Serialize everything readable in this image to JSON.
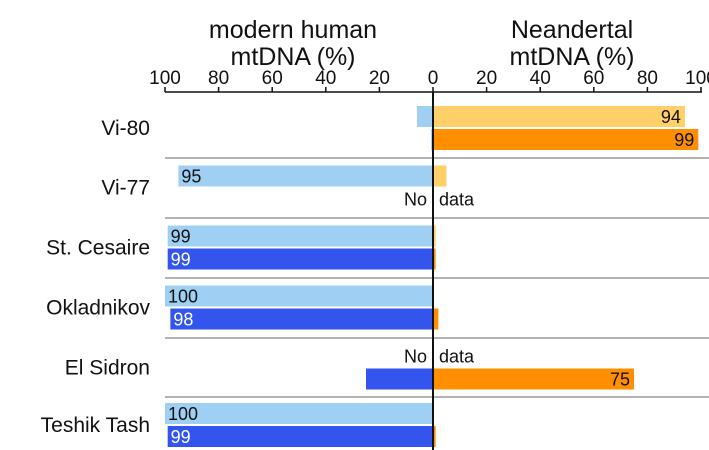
{
  "chart_data": {
    "type": "bar",
    "orientation": "horizontal",
    "headers": {
      "left": [
        "modern human",
        "mtDNA (%)"
      ],
      "right": [
        "Neandertal",
        "mtDNA (%)"
      ]
    },
    "left_ticks": [
      "100",
      "80",
      "60",
      "40",
      "20",
      "0"
    ],
    "right_ticks": [
      "0",
      "20",
      "40",
      "60",
      "80",
      "100"
    ],
    "xlim_left": [
      100,
      0
    ],
    "xlim_right": [
      0,
      100
    ],
    "grid": false,
    "no_data_text": [
      "No",
      "data"
    ],
    "categories": [
      "Vi-80",
      "Vi-77",
      "St. Cesaire",
      "Okladnikov",
      "El Sidron",
      "Teshik Tash"
    ],
    "rows": [
      {
        "category": "Vi-80",
        "top": {
          "modern": 6,
          "neandertal": 94,
          "label": "94",
          "label_side": "right"
        },
        "bottom": {
          "modern": 0.5,
          "neandertal": 99,
          "label": "99",
          "label_side": "right"
        }
      },
      {
        "category": "Vi-77",
        "top": {
          "modern": 95,
          "neandertal": 5,
          "label": "95",
          "label_side": "left"
        },
        "bottom": {
          "no_data": true
        }
      },
      {
        "category": "St. Cesaire",
        "top": {
          "modern": 99,
          "neandertal": 1,
          "label": "99",
          "label_side": "left"
        },
        "bottom": {
          "modern": 99,
          "neandertal": 1,
          "label": "99",
          "label_side": "left"
        }
      },
      {
        "category": "Okladnikov",
        "top": {
          "modern": 100,
          "neandertal": 0,
          "label": "100",
          "label_side": "left"
        },
        "bottom": {
          "modern": 98,
          "neandertal": 2,
          "label": "98",
          "label_side": "left"
        }
      },
      {
        "category": "El Sidron",
        "top": {
          "no_data": true
        },
        "bottom": {
          "modern": 25,
          "neandertal": 75,
          "label": "75",
          "label_side": "right"
        }
      },
      {
        "category": "Teshik Tash",
        "top": {
          "modern": 100,
          "neandertal": 0,
          "label": "100",
          "label_side": "left"
        },
        "bottom": {
          "modern": 99,
          "neandertal": 1,
          "label": "99",
          "label_side": "left"
        }
      }
    ],
    "colors": {
      "modern_top": "#9fd0f4",
      "modern_bottom": "#3355ee",
      "neandertal_top": "#ffcf6a",
      "neandertal_bottom": "#ff8f00",
      "divider": "#9a9a9a",
      "axis": "#111111"
    }
  }
}
